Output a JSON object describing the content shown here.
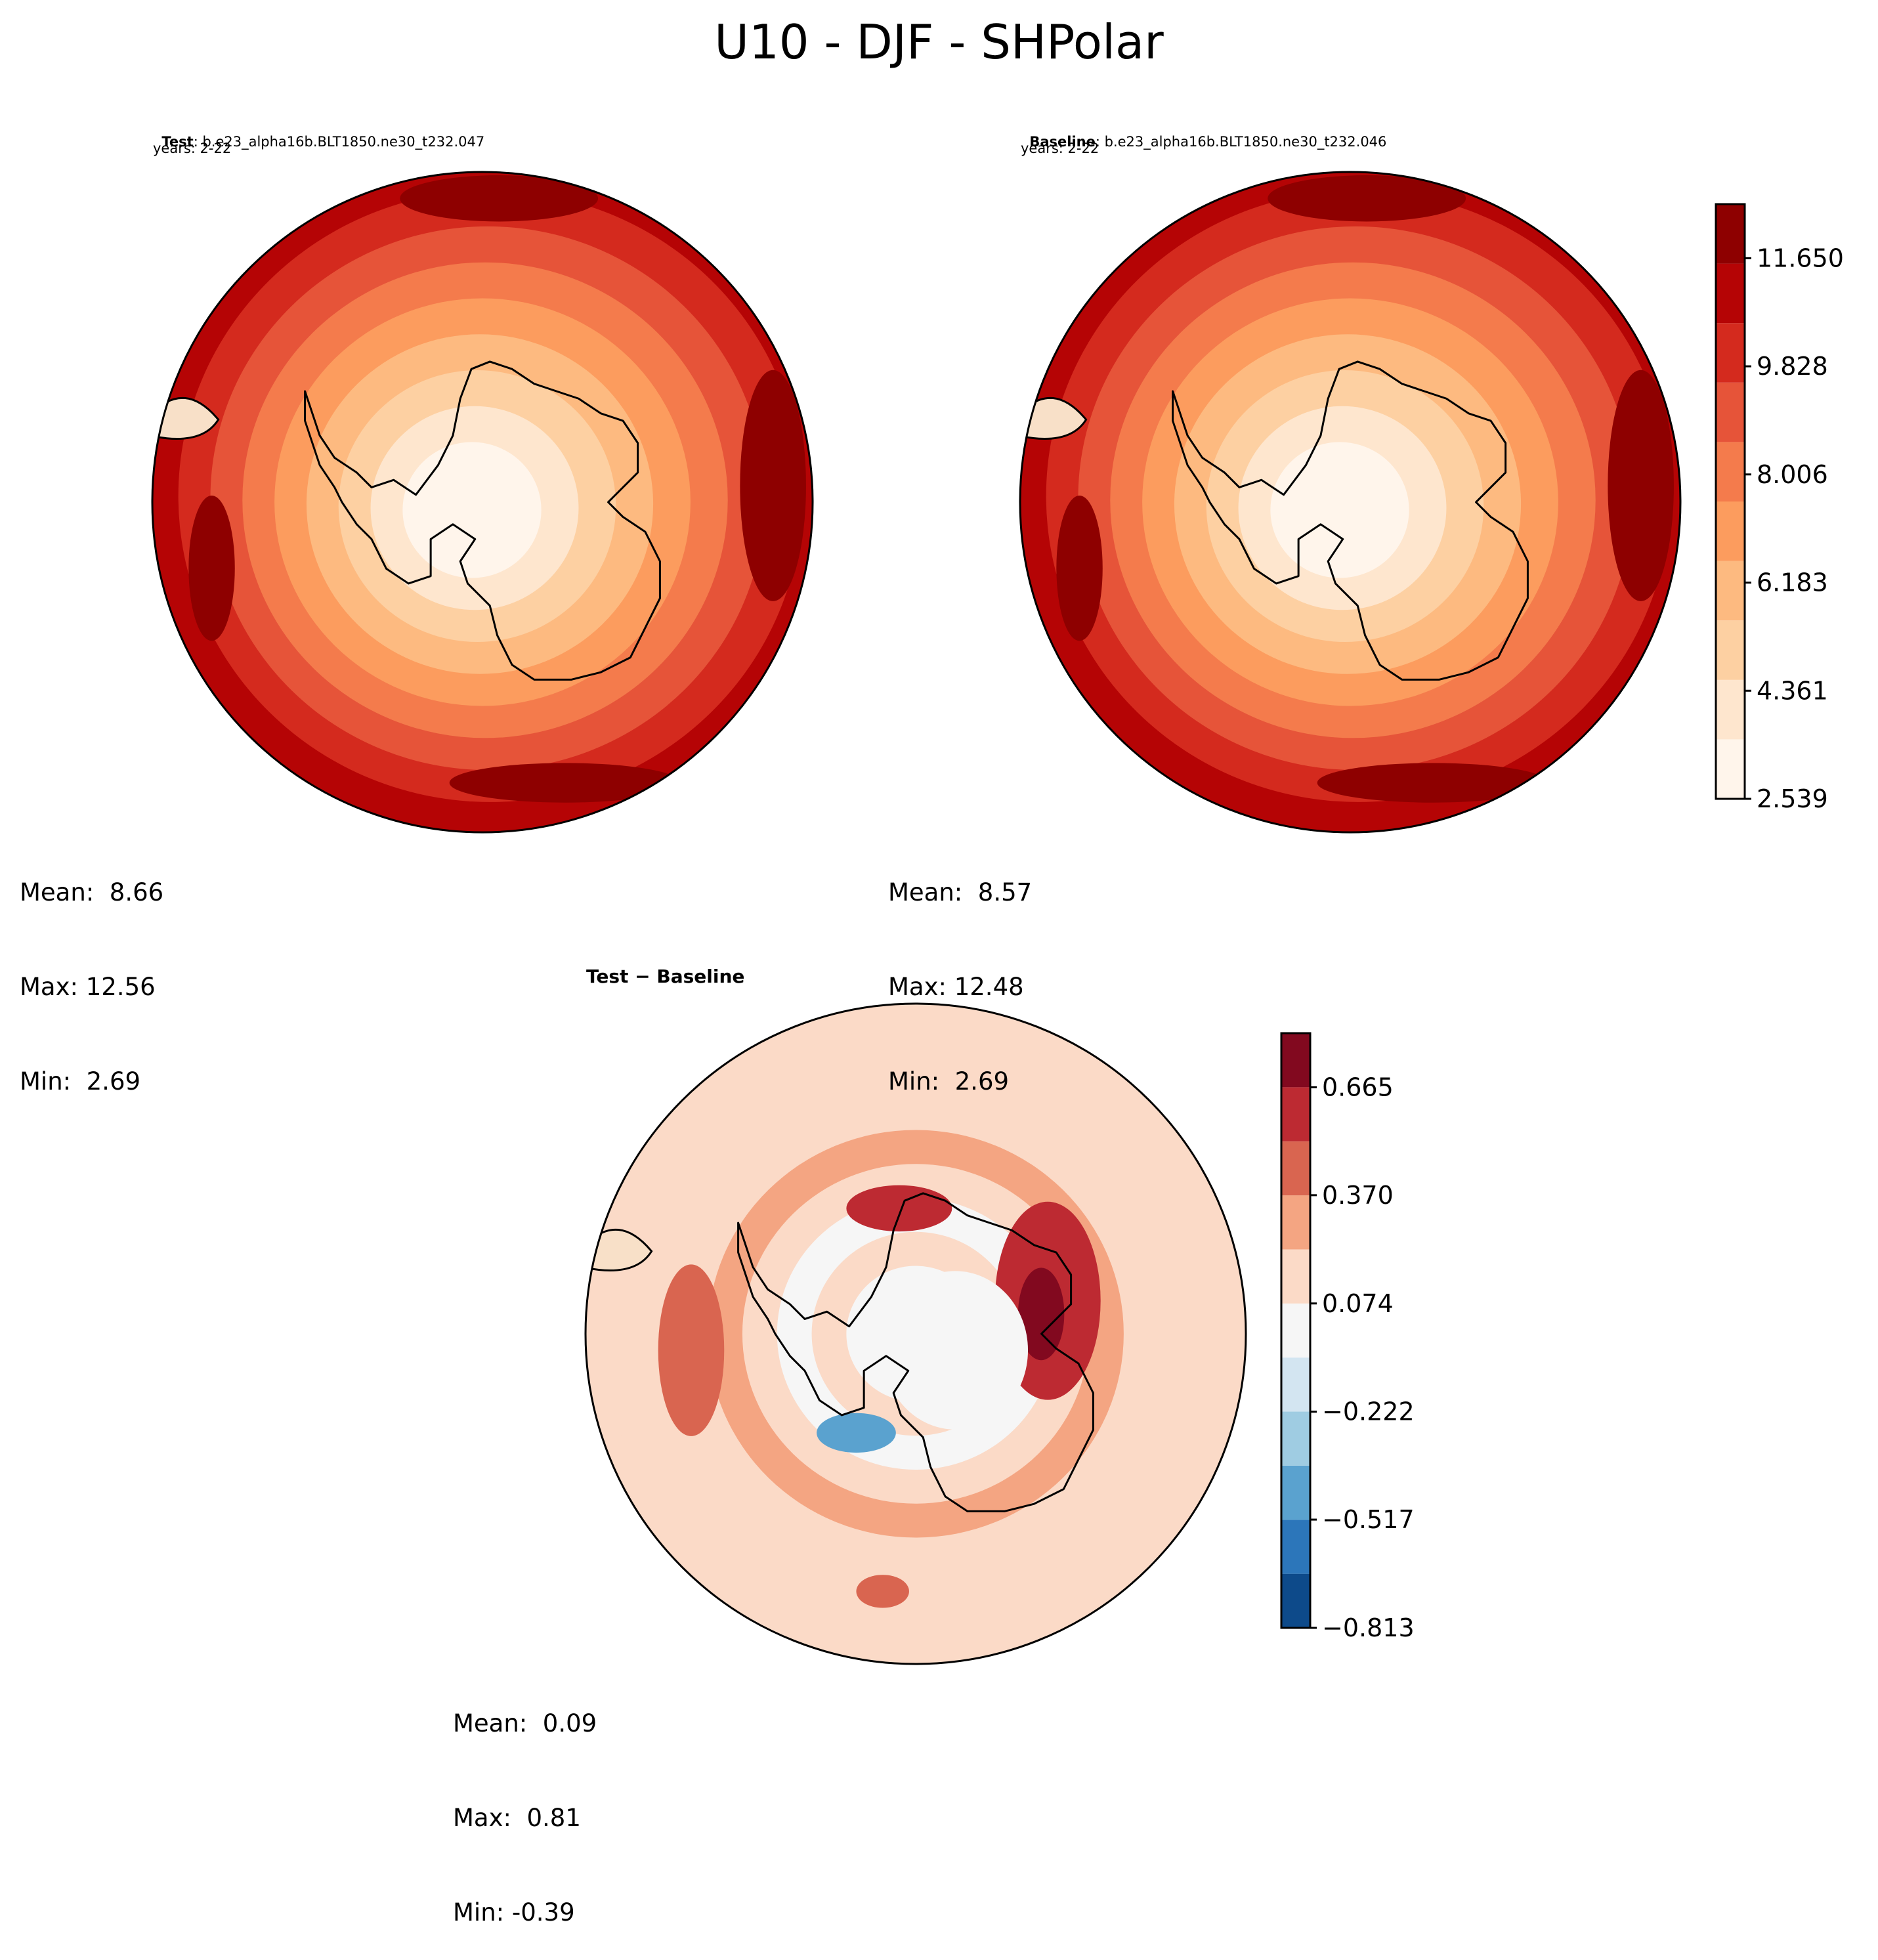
{
  "figure": {
    "title": "U10 - DJF - SHPolar"
  },
  "chart_data": [
    {
      "type": "heatmap",
      "name": "test",
      "label_bold": "Test",
      "case": ": b.e23_alpha16b.BLT1850.ne30_t232.047",
      "years": "years: 2-22",
      "projection": "south-polar-stereographic",
      "stats": {
        "mean": "Mean:  8.66",
        "max": "Max: 12.56",
        "min": "Min:  2.69"
      },
      "bands_inner_to_outer": [
        2.9,
        3.4,
        4.4,
        5.4,
        6.4,
        7.4,
        8.3,
        9.2,
        10.2,
        11.2
      ]
    },
    {
      "type": "heatmap",
      "name": "baseline",
      "label_bold": "Baseline",
      "case": ": b.e23_alpha16b.BLT1850.ne30_t232.046",
      "years": "years: 2-22",
      "projection": "south-polar-stereographic",
      "stats": {
        "mean": "Mean:  8.57",
        "max": "Max: 12.48",
        "min": "Min:  2.69"
      },
      "bands_inner_to_outer": [
        2.9,
        3.4,
        4.4,
        5.4,
        6.4,
        7.4,
        8.3,
        9.2,
        10.2,
        11.2
      ]
    },
    {
      "type": "heatmap",
      "name": "difference",
      "title": "Test − Baseline",
      "projection": "south-polar-stereographic",
      "stats": {
        "mean": "Mean:  0.09",
        "max": "Max:  0.81",
        "min": "Min: -0.39"
      },
      "bands_inner_to_outer": [
        0.05,
        0.0,
        0.15,
        0.0,
        0.2,
        0.25,
        0.15,
        0.2,
        0.1,
        0.1
      ]
    }
  ],
  "colorbars": {
    "main": {
      "range": [
        2.539,
        12.561
      ],
      "ticks": [
        "2.539",
        "4.361",
        "6.183",
        "8.006",
        "9.828",
        "11.650"
      ],
      "tick_values": [
        2.539,
        4.361,
        6.183,
        8.006,
        9.828,
        11.65
      ],
      "colors": [
        "#fff5eb",
        "#fee6ce",
        "#fdd0a2",
        "#fdba80",
        "#fc9c5e",
        "#f47b4c",
        "#e65439",
        "#d42a1e",
        "#b50405",
        "#8e0000"
      ]
    },
    "diff": {
      "range": [
        -0.813,
        0.813
      ],
      "ticks": [
        "−0.813",
        "−0.517",
        "−0.222",
        "0.074",
        "0.370",
        "0.665"
      ],
      "tick_values": [
        -0.813,
        -0.517,
        -0.222,
        0.074,
        0.37,
        0.665
      ],
      "colors": [
        "#0d4a8a",
        "#2c76ba",
        "#5aa2cf",
        "#9fcce2",
        "#d3e5f1",
        "#f6f6f6",
        "#fbdac7",
        "#f4a582",
        "#d96550",
        "#bd2a32",
        "#82091f"
      ]
    }
  },
  "colors": {
    "coast": "#000000",
    "frame": "#000000"
  }
}
